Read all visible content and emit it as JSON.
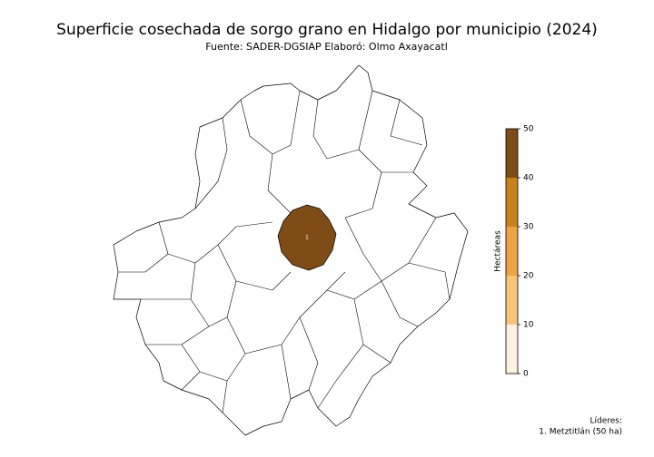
{
  "title": "Superficie cosechada de sorgo grano en Hidalgo por municipio (2024)",
  "subtitle": {
    "source": "Fuente: SADER-DGSIAP",
    "author": "Elaboró: Olmo Axayacatl"
  },
  "map": {
    "regions": [
      {
        "label": "1",
        "value": 50
      }
    ]
  },
  "colorbar": {
    "label": "Hectáreas",
    "lim": [
      0,
      50
    ],
    "ticks": [
      0,
      10,
      20,
      30,
      40,
      50
    ],
    "colors": [
      "#fdf1df",
      "#f9c47a",
      "#eba344",
      "#c98120",
      "#7f4b16"
    ]
  },
  "leaders": {
    "title": "Líderes:",
    "items": [
      "1. Metztitlán (50 ha)"
    ]
  }
}
